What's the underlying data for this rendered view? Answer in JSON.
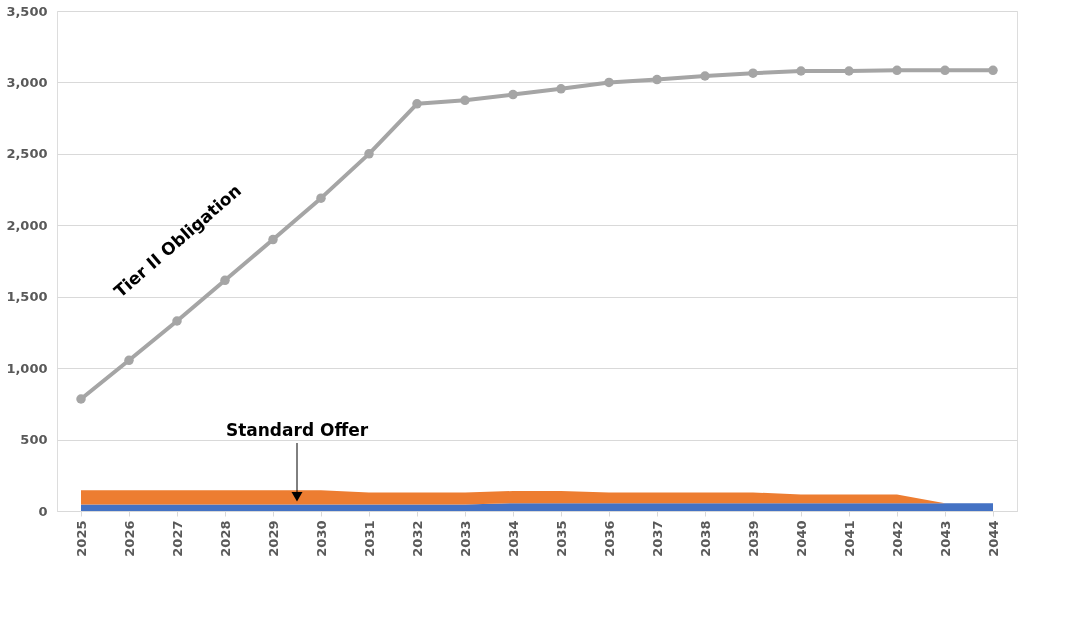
{
  "chart_data": {
    "type": "line",
    "categories": [
      "2025",
      "2026",
      "2027",
      "2028",
      "2029",
      "2030",
      "2031",
      "2032",
      "2033",
      "2034",
      "2035",
      "2036",
      "2037",
      "2038",
      "2039",
      "2040",
      "2041",
      "2042",
      "2043",
      "2044"
    ],
    "series": [
      {
        "name": "Tier II Obligation",
        "color": "#a5a5a5",
        "marker": "circle",
        "values": [
          784,
          1055,
          1330,
          1615,
          1900,
          2190,
          2500,
          2850,
          2875,
          2915,
          2955,
          3000,
          3020,
          3045,
          3065,
          3080,
          3080,
          3085,
          3085,
          3085
        ]
      },
      {
        "type": "area",
        "color": "#4472c4",
        "values": [
          45,
          45,
          45,
          45,
          45,
          45,
          45,
          45,
          45,
          55,
          55,
          55,
          55,
          55,
          55,
          55,
          55,
          55,
          55,
          55
        ]
      },
      {
        "type": "area",
        "color": "#ed7d31",
        "values": [
          100,
          100,
          100,
          100,
          100,
          100,
          85,
          85,
          85,
          85,
          85,
          75,
          75,
          75,
          75,
          60,
          60,
          60,
          0,
          0
        ]
      }
    ],
    "stacked": true,
    "annotations": [
      {
        "text": "Standard Offer",
        "y": 100
      }
    ],
    "ylim": [
      0,
      3500
    ],
    "yticks": [
      0,
      {
        "value": 500,
        "label": "500"
      },
      {
        "value": 1000,
        "label": "1,000"
      },
      {
        "value": 1500,
        "label": "1,500"
      },
      {
        "value": 2000,
        "label": "2,000"
      },
      {
        "value": 2500,
        "label": "2,500"
      },
      {
        "value": 3000,
        "label": "3,000"
      },
      {
        "value": 3500,
        "label": "3,500"
      }
    ],
    "grid": "y",
    "legend": false
  }
}
